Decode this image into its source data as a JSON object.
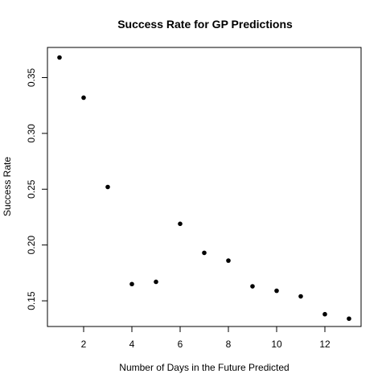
{
  "chart_data": {
    "type": "scatter",
    "title": "Success Rate for GP Predictions",
    "xlabel": "Number of Days in the Future Predicted",
    "ylabel": "Success Rate",
    "xlim": [
      0.5,
      13.5
    ],
    "ylim": [
      0.127,
      0.377
    ],
    "x_ticks": [
      2,
      4,
      6,
      8,
      10,
      12
    ],
    "x_tick_labels": [
      "2",
      "4",
      "6",
      "8",
      "10",
      "12"
    ],
    "y_ticks": [
      0.15,
      0.2,
      0.25,
      0.3,
      0.35
    ],
    "y_tick_labels": [
      "0.15",
      "0.20",
      "0.25",
      "0.30",
      "0.35"
    ],
    "grid": false,
    "point_color": "#000000",
    "series": [
      {
        "x": [
          1,
          2,
          3,
          4,
          5,
          6,
          7,
          8,
          9,
          10,
          11,
          12,
          13
        ],
        "y": [
          0.368,
          0.332,
          0.252,
          0.165,
          0.167,
          0.219,
          0.193,
          0.186,
          0.163,
          0.159,
          0.154,
          0.138,
          0.134
        ]
      }
    ]
  }
}
